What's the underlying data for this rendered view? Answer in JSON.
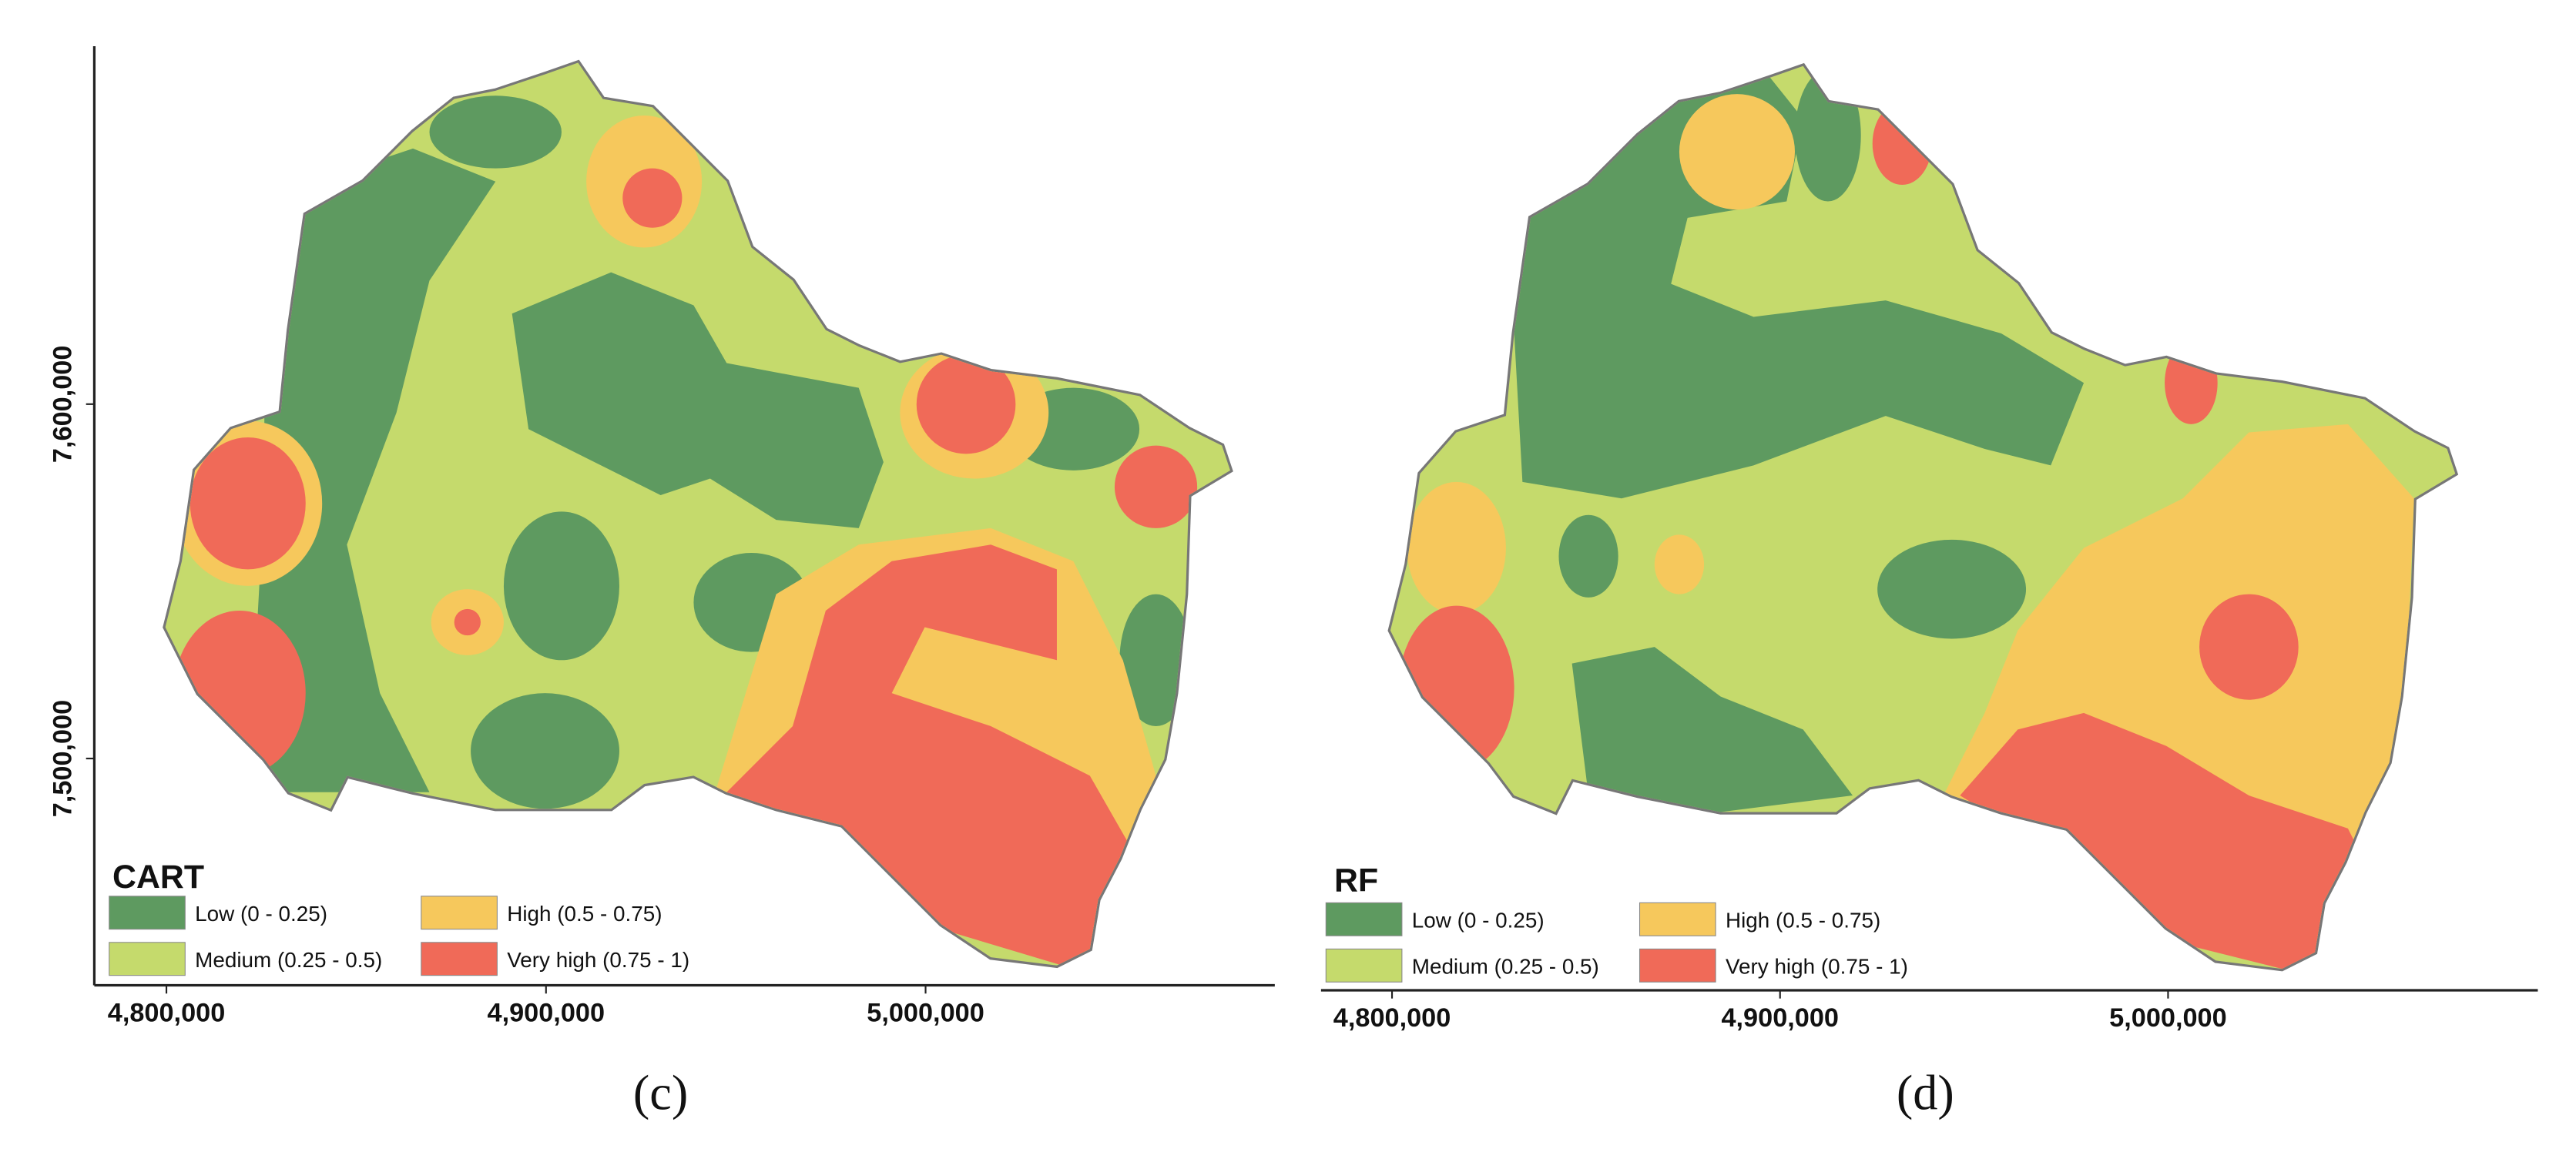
{
  "panels": [
    {
      "title": "CART",
      "caption": "(c)",
      "legend": [
        {
          "label": "Low (0 - 0.25)",
          "color": "#5e9a60"
        },
        {
          "label": "Medium (0.25 - 0.5)",
          "color": "#c5da6c"
        },
        {
          "label": "High (0.5 - 0.75)",
          "color": "#f6c85c"
        },
        {
          "label": "Very high (0.75 - 1)",
          "color": "#f06a58"
        }
      ],
      "xlim": [
        4781000,
        5092000
      ],
      "xticks": [
        {
          "value": 4800000,
          "label": "4,800,000"
        },
        {
          "value": 4900000,
          "label": "4,900,000"
        },
        {
          "value": 5000000,
          "label": "5,000,000"
        }
      ],
      "ylim": [
        7436000,
        7701000
      ],
      "yticks": [
        {
          "value": 7500000,
          "label": "7,500,000"
        },
        {
          "value": 7600000,
          "label": "7,600,000"
        }
      ]
    },
    {
      "title": "RF",
      "caption": "(d)",
      "legend": [
        {
          "label": "Low (0 - 0.25)",
          "color": "#5e9a60"
        },
        {
          "label": "Medium (0.25 - 0.5)",
          "color": "#c5da6c"
        },
        {
          "label": "High (0.5 - 0.75)",
          "color": "#f6c85c"
        },
        {
          "label": "Very high (0.75 - 1)",
          "color": "#f06a58"
        }
      ],
      "xlim": [
        4781700,
        5095300
      ],
      "xticks": [
        {
          "value": 4800000,
          "label": "4,800,000"
        },
        {
          "value": 4900000,
          "label": "4,900,000"
        },
        {
          "value": 5000000,
          "label": "5,000,000"
        }
      ]
    }
  ]
}
